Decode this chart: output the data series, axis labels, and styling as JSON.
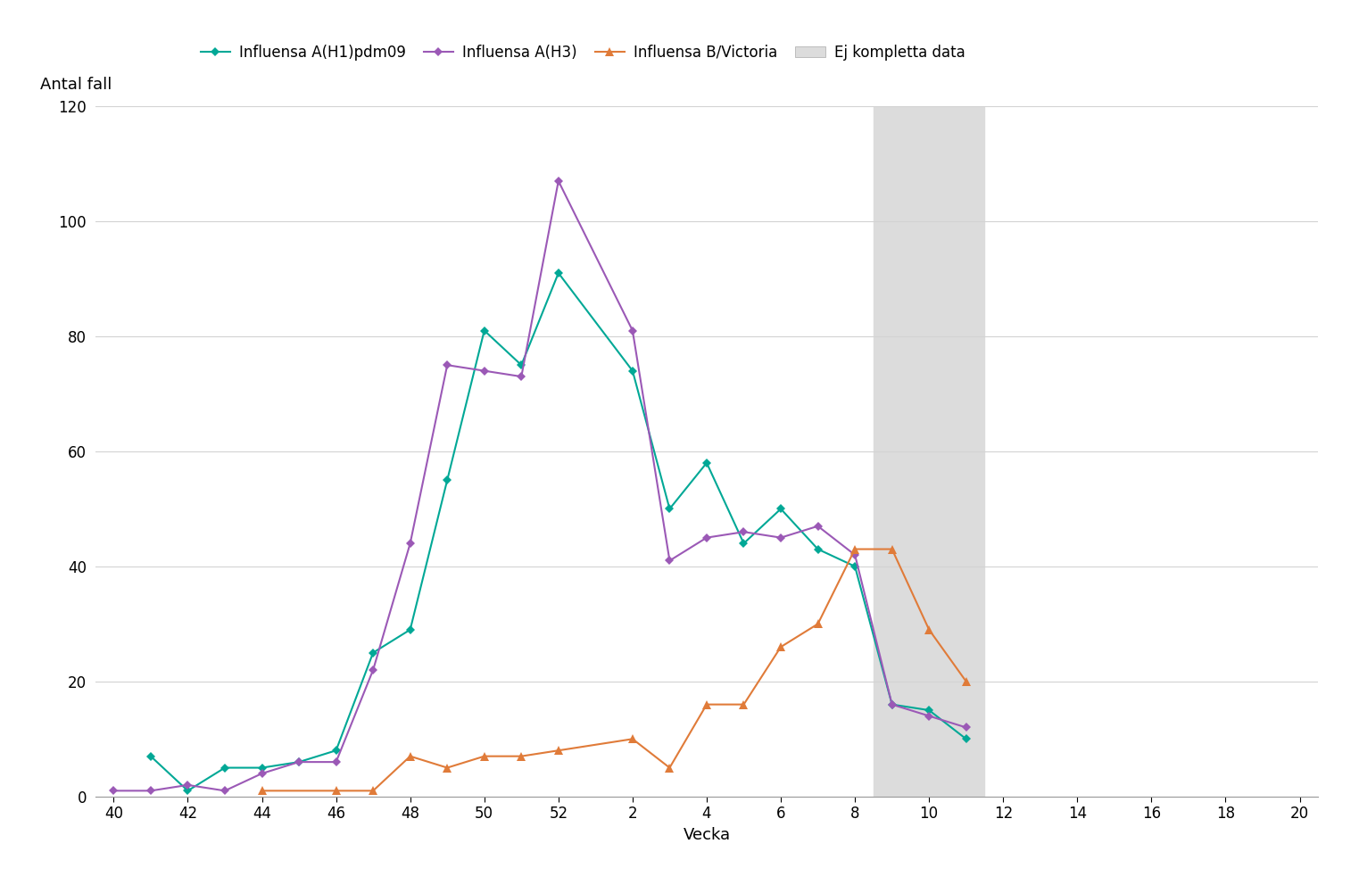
{
  "h1_x": [
    41,
    42,
    43,
    44,
    45,
    46,
    47,
    48,
    49,
    50,
    51,
    52,
    2,
    3,
    4,
    5,
    6,
    7,
    8,
    9,
    10,
    11
  ],
  "h1_y": [
    7,
    1,
    5,
    5,
    6,
    8,
    25,
    29,
    55,
    81,
    75,
    91,
    74,
    50,
    58,
    44,
    50,
    43,
    40,
    16,
    15,
    10
  ],
  "h3_x": [
    40,
    41,
    42,
    43,
    44,
    45,
    46,
    47,
    48,
    49,
    50,
    51,
    52,
    2,
    3,
    4,
    5,
    6,
    7,
    8,
    9,
    10,
    11
  ],
  "h3_y": [
    1,
    1,
    2,
    1,
    4,
    6,
    6,
    22,
    44,
    75,
    74,
    73,
    107,
    81,
    41,
    45,
    46,
    45,
    47,
    42,
    16,
    14,
    12
  ],
  "bv_x": [
    44,
    46,
    47,
    48,
    49,
    50,
    51,
    52,
    2,
    3,
    4,
    5,
    6,
    7,
    8,
    9,
    10,
    11
  ],
  "bv_y": [
    1,
    1,
    1,
    7,
    5,
    7,
    7,
    8,
    10,
    5,
    16,
    16,
    26,
    30,
    43,
    43,
    29,
    20
  ],
  "shade_xmin": 9,
  "shade_xmax": 11,
  "ylim": [
    0,
    120
  ],
  "yticks": [
    0,
    20,
    40,
    60,
    80,
    100,
    120
  ],
  "xtick_weeks": [
    40,
    42,
    44,
    46,
    48,
    50,
    52,
    2,
    4,
    6,
    8,
    10,
    12,
    14,
    16,
    18,
    20
  ],
  "xlabel": "Vecka",
  "ylabel": "Antal fall",
  "h1_color": "#00A896",
  "h3_color": "#9B59B6",
  "bv_color": "#E07B39",
  "shade_color": "#DCDCDC",
  "legend_h1": "Influensa A(H1)pdm09",
  "legend_h3": "Influensa A(H3)",
  "legend_bv": "Influensa B/Victoria",
  "legend_shade": "Ej kompletta data",
  "background_color": "#ffffff"
}
